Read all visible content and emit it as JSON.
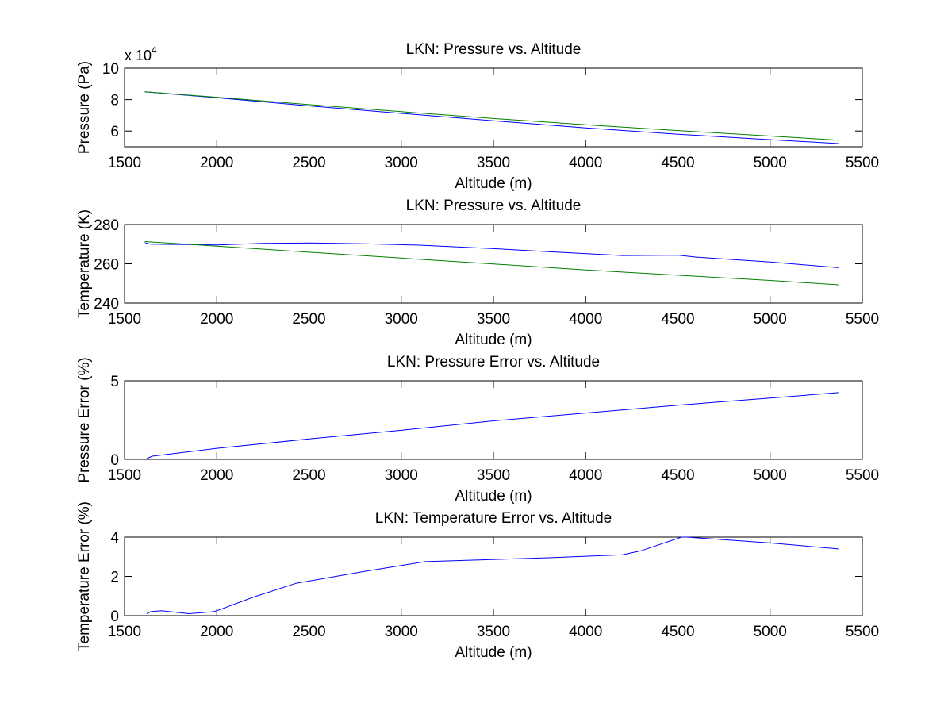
{
  "figure": {
    "background": "#ffffff",
    "series_colors": {
      "blue": "#0000ff",
      "green": "#008000"
    }
  },
  "chart_data": [
    {
      "type": "line",
      "title": "LKN: Pressure vs. Altitude",
      "xlabel": "Altitude (m)",
      "ylabel": "Pressure (Pa)",
      "y_exponent": {
        "base": "x 10",
        "power": "4"
      },
      "xlim": [
        1500,
        5500
      ],
      "ylim": [
        5,
        10
      ],
      "xticks": [
        1500,
        2000,
        2500,
        3000,
        3500,
        4000,
        4500,
        5000,
        5500
      ],
      "xtick_labels": [
        "1500",
        "2000",
        "2500",
        "3000",
        "3500",
        "4000",
        "4500",
        "5000",
        "5500"
      ],
      "yticks": [
        6,
        8,
        10
      ],
      "ytick_labels": [
        "6",
        "8",
        "10"
      ],
      "grid": false,
      "series": [
        {
          "color": "#0000ff",
          "x": [
            1610,
            2000,
            2500,
            3000,
            3500,
            4000,
            4500,
            5000,
            5370
          ],
          "y": [
            8.5,
            8.12,
            7.6,
            7.12,
            6.65,
            6.2,
            5.8,
            5.45,
            5.2
          ]
        },
        {
          "color": "#008000",
          "x": [
            1610,
            2000,
            2500,
            3000,
            3500,
            4000,
            4500,
            5000,
            5370
          ],
          "y": [
            8.5,
            8.15,
            7.68,
            7.23,
            6.8,
            6.4,
            6.03,
            5.68,
            5.42
          ]
        }
      ]
    },
    {
      "type": "line",
      "title": "LKN: Pressure vs. Altitude",
      "xlabel": "Altitude (m)",
      "ylabel": "Temperature (K)",
      "xlim": [
        1500,
        5500
      ],
      "ylim": [
        240,
        280
      ],
      "xticks": [
        1500,
        2000,
        2500,
        3000,
        3500,
        4000,
        4500,
        5000,
        5500
      ],
      "xtick_labels": [
        "1500",
        "2000",
        "2500",
        "3000",
        "3500",
        "4000",
        "4500",
        "5000",
        "5500"
      ],
      "yticks": [
        240,
        260,
        280
      ],
      "ytick_labels": [
        "240",
        "260",
        "280"
      ],
      "grid": false,
      "series": [
        {
          "color": "#0000ff",
          "x": [
            1610,
            1640,
            2000,
            2250,
            2500,
            2800,
            3100,
            3500,
            3800,
            4200,
            4500,
            4600,
            5000,
            5370
          ],
          "y": [
            270.8,
            270.0,
            269.6,
            270.4,
            270.6,
            270.2,
            269.5,
            267.7,
            266.2,
            264.2,
            264.4,
            263.4,
            260.9,
            258.0
          ]
        },
        {
          "color": "#008000",
          "x": [
            1610,
            2000,
            2500,
            3000,
            3500,
            4000,
            4500,
            5000,
            5370
          ],
          "y": [
            271.3,
            269.0,
            265.9,
            262.9,
            259.9,
            256.9,
            254.2,
            251.5,
            249.3
          ]
        }
      ]
    },
    {
      "type": "line",
      "title": "LKN: Pressure Error vs. Altitude",
      "xlabel": "Altitude (m)",
      "ylabel": "Pressure Error (%)",
      "xlim": [
        1500,
        5500
      ],
      "ylim": [
        0,
        5
      ],
      "xticks": [
        1500,
        2000,
        2500,
        3000,
        3500,
        4000,
        4500,
        5000,
        5500
      ],
      "xtick_labels": [
        "1500",
        "2000",
        "2500",
        "3000",
        "3500",
        "4000",
        "4500",
        "5000",
        "5500"
      ],
      "yticks": [
        0,
        5
      ],
      "ytick_labels": [
        "0",
        "5"
      ],
      "grid": false,
      "series": [
        {
          "color": "#0000ff",
          "x": [
            1620,
            1650,
            2000,
            2500,
            3000,
            3500,
            4000,
            4500,
            5000,
            5370
          ],
          "y": [
            0.05,
            0.2,
            0.7,
            1.3,
            1.85,
            2.45,
            2.95,
            3.45,
            3.9,
            4.25
          ]
        }
      ]
    },
    {
      "type": "line",
      "title": "LKN: Temperature Error vs. Altitude",
      "xlabel": "Altitude (m)",
      "ylabel": "Temperature Error (%)",
      "xlim": [
        1500,
        5500
      ],
      "ylim": [
        0,
        4
      ],
      "xticks": [
        1500,
        2000,
        2500,
        3000,
        3500,
        4000,
        4500,
        5000,
        5500
      ],
      "xtick_labels": [
        "1500",
        "2000",
        "2500",
        "3000",
        "3500",
        "4000",
        "4500",
        "5000",
        "5500"
      ],
      "yticks": [
        0,
        2,
        4
      ],
      "ytick_labels": [
        "0",
        "2",
        "4"
      ],
      "grid": false,
      "series": [
        {
          "color": "#0000ff",
          "x": [
            1620,
            1640,
            1700,
            1850,
            1980,
            2000,
            2200,
            2430,
            2800,
            3130,
            3800,
            4200,
            4300,
            4520,
            4550,
            5000,
            5370
          ],
          "y": [
            0.1,
            0.2,
            0.25,
            0.1,
            0.2,
            0.25,
            0.95,
            1.65,
            2.25,
            2.75,
            2.95,
            3.1,
            3.3,
            4.0,
            4.0,
            3.7,
            3.4
          ]
        }
      ]
    }
  ]
}
